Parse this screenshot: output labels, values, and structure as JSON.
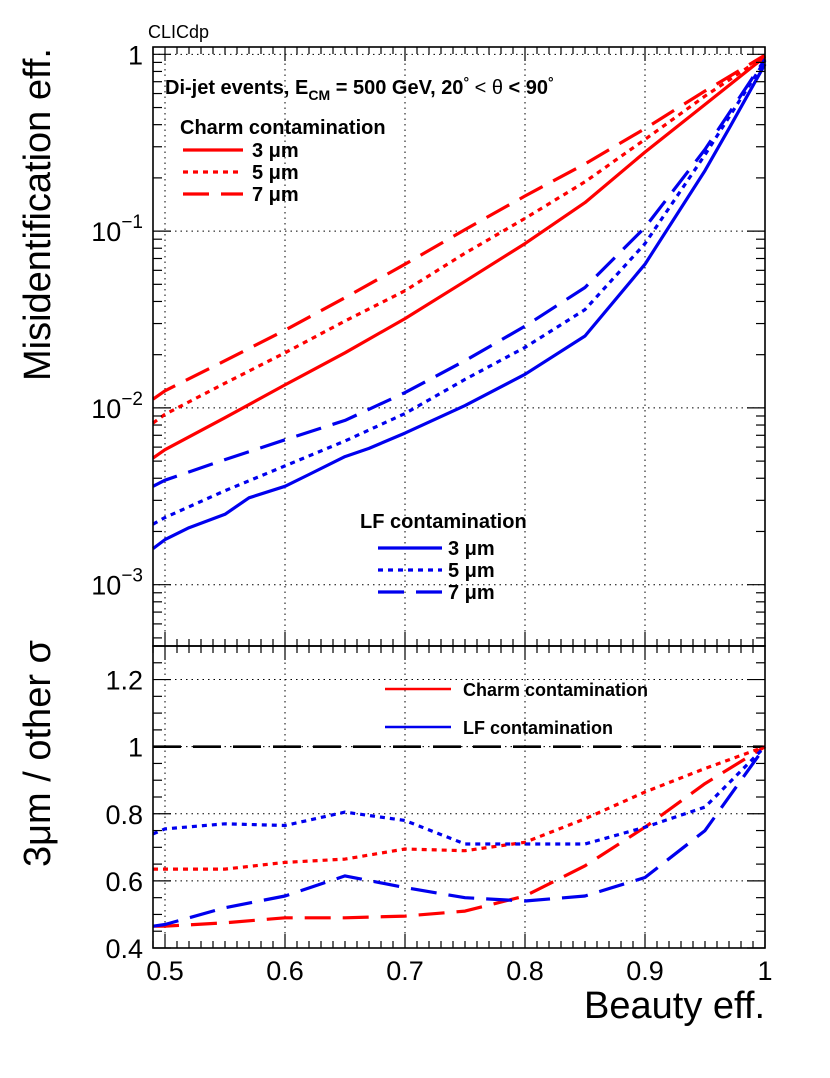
{
  "chart_data": [
    {
      "type": "line",
      "panel": "top",
      "watermark": "CLICdp",
      "ylabel": "Misidentification eff.",
      "yscale": "log",
      "xlim": [
        0.49,
        1.0
      ],
      "ylim": [
        0.00045,
        1.1
      ],
      "ytick_labels": [
        {
          "value": 1,
          "label": "1"
        },
        {
          "value": 0.1,
          "label": "10",
          "exp": "−1"
        },
        {
          "value": 0.01,
          "label": "10",
          "exp": "−2"
        },
        {
          "value": 0.001,
          "label": "10",
          "exp": "−3"
        }
      ],
      "annotation": {
        "prefix": "Di-jet events, E",
        "sub": "CM",
        "suffix": " = 500 GeV, 20",
        "deg1": "°",
        "lt1": " < ",
        "theta": "θ",
        "lt2": " < 90",
        "deg2": "°"
      },
      "legend_groups": [
        {
          "title": "Charm contamination",
          "position": "top-left",
          "entries": [
            {
              "label": "3  μm",
              "style": "solid"
            },
            {
              "label": "5  μm",
              "style": "dotted"
            },
            {
              "label": "7  μm",
              "style": "dashed"
            }
          ]
        },
        {
          "title": "LF contamination",
          "position": "center",
          "entries": [
            {
              "label": "3  μm",
              "style": "solid"
            },
            {
              "label": "5  μm",
              "style": "dotted"
            },
            {
              "label": "7  μm",
              "style": "dashed"
            }
          ]
        }
      ],
      "series": [
        {
          "name": "Charm 3 μm",
          "color": "#ff0000",
          "style": "solid",
          "x": [
            0.49,
            0.5,
            0.55,
            0.6,
            0.65,
            0.7,
            0.75,
            0.8,
            0.85,
            0.9,
            0.95,
            1.0
          ],
          "y": [
            0.0052,
            0.0058,
            0.0088,
            0.0135,
            0.0205,
            0.032,
            0.052,
            0.085,
            0.145,
            0.28,
            0.52,
            0.97
          ]
        },
        {
          "name": "Charm 5 μm",
          "color": "#ff0000",
          "style": "dotted",
          "x": [
            0.49,
            0.5,
            0.55,
            0.6,
            0.65,
            0.7,
            0.75,
            0.8,
            0.85,
            0.9,
            0.95,
            1.0
          ],
          "y": [
            0.0082,
            0.0092,
            0.0138,
            0.0205,
            0.031,
            0.046,
            0.075,
            0.118,
            0.19,
            0.33,
            0.58,
            0.98
          ]
        },
        {
          "name": "Charm 7 μm",
          "color": "#ff0000",
          "style": "dashed",
          "x": [
            0.49,
            0.5,
            0.55,
            0.6,
            0.65,
            0.7,
            0.75,
            0.8,
            0.85,
            0.9,
            0.95,
            1.0
          ],
          "y": [
            0.0112,
            0.0125,
            0.0185,
            0.0275,
            0.042,
            0.065,
            0.102,
            0.158,
            0.24,
            0.38,
            0.62,
            0.99
          ]
        },
        {
          "name": "LF 3 μm",
          "color": "#0000ee",
          "style": "solid",
          "x": [
            0.49,
            0.5,
            0.52,
            0.55,
            0.57,
            0.6,
            0.62,
            0.65,
            0.67,
            0.7,
            0.75,
            0.8,
            0.85,
            0.9,
            0.95,
            0.97,
            1.0
          ],
          "y": [
            0.0016,
            0.0018,
            0.0021,
            0.0025,
            0.0031,
            0.0036,
            0.0042,
            0.0053,
            0.0059,
            0.0072,
            0.0103,
            0.0155,
            0.0255,
            0.065,
            0.22,
            0.38,
            0.88
          ]
        },
        {
          "name": "LF 5 μm",
          "color": "#0000ee",
          "style": "dotted",
          "x": [
            0.49,
            0.5,
            0.55,
            0.6,
            0.65,
            0.7,
            0.75,
            0.8,
            0.85,
            0.9,
            0.95,
            1.0
          ],
          "y": [
            0.0022,
            0.0024,
            0.0034,
            0.0047,
            0.0065,
            0.0093,
            0.0145,
            0.022,
            0.036,
            0.085,
            0.27,
            0.92
          ]
        },
        {
          "name": "LF 7 μm",
          "color": "#0000ee",
          "style": "dashed",
          "x": [
            0.49,
            0.5,
            0.55,
            0.6,
            0.65,
            0.7,
            0.75,
            0.8,
            0.85,
            0.9,
            0.95,
            1.0
          ],
          "y": [
            0.0036,
            0.0039,
            0.0051,
            0.0066,
            0.0085,
            0.0122,
            0.0185,
            0.029,
            0.048,
            0.105,
            0.29,
            0.94
          ]
        }
      ]
    },
    {
      "type": "line",
      "panel": "bottom",
      "xlabel": "Beauty eff.",
      "ylabel": "3μm / other σ",
      "xlim": [
        0.49,
        1.0
      ],
      "ylim": [
        0.4,
        1.3
      ],
      "xticks": [
        0.5,
        0.6,
        0.7,
        0.8,
        0.9,
        1
      ],
      "xtick_labels": [
        "0.5",
        "0.6",
        "0.7",
        "0.8",
        "0.9",
        "1"
      ],
      "yticks": [
        0.4,
        0.6,
        0.8,
        1,
        1.2
      ],
      "ytick_labels": [
        "0.4",
        "0.6",
        "0.8",
        "1",
        "1.2"
      ],
      "reference_line": 1,
      "legend": [
        {
          "label": "Charm contamination",
          "color": "#ff0000"
        },
        {
          "label": "LF contamination",
          "color": "#0000ee"
        }
      ],
      "series": [
        {
          "name": "Charm 3/5 μm",
          "color": "#ff0000",
          "style": "dotted",
          "x": [
            0.49,
            0.5,
            0.55,
            0.6,
            0.65,
            0.7,
            0.75,
            0.8,
            0.85,
            0.9,
            0.95,
            1.0
          ],
          "y": [
            0.635,
            0.635,
            0.635,
            0.655,
            0.665,
            0.695,
            0.69,
            0.715,
            0.785,
            0.865,
            0.935,
            1.0
          ]
        },
        {
          "name": "Charm 3/7 μm",
          "color": "#ff0000",
          "style": "dashed",
          "x": [
            0.49,
            0.5,
            0.55,
            0.6,
            0.65,
            0.7,
            0.75,
            0.8,
            0.85,
            0.9,
            0.95,
            1.0
          ],
          "y": [
            0.465,
            0.465,
            0.475,
            0.49,
            0.49,
            0.495,
            0.51,
            0.555,
            0.645,
            0.76,
            0.89,
            1.0
          ]
        },
        {
          "name": "LF 3/5 μm",
          "color": "#0000ee",
          "style": "dotted",
          "x": [
            0.49,
            0.5,
            0.55,
            0.6,
            0.65,
            0.7,
            0.75,
            0.8,
            0.85,
            0.9,
            0.95,
            1.0
          ],
          "y": [
            0.74,
            0.755,
            0.77,
            0.765,
            0.805,
            0.78,
            0.71,
            0.71,
            0.71,
            0.76,
            0.82,
            1.0
          ]
        },
        {
          "name": "LF 3/7 μm",
          "color": "#0000ee",
          "style": "dashed",
          "x": [
            0.49,
            0.5,
            0.55,
            0.6,
            0.65,
            0.7,
            0.75,
            0.8,
            0.85,
            0.9,
            0.95,
            1.0
          ],
          "y": [
            0.465,
            0.47,
            0.52,
            0.555,
            0.615,
            0.58,
            0.55,
            0.54,
            0.555,
            0.61,
            0.75,
            1.0
          ]
        }
      ]
    }
  ]
}
